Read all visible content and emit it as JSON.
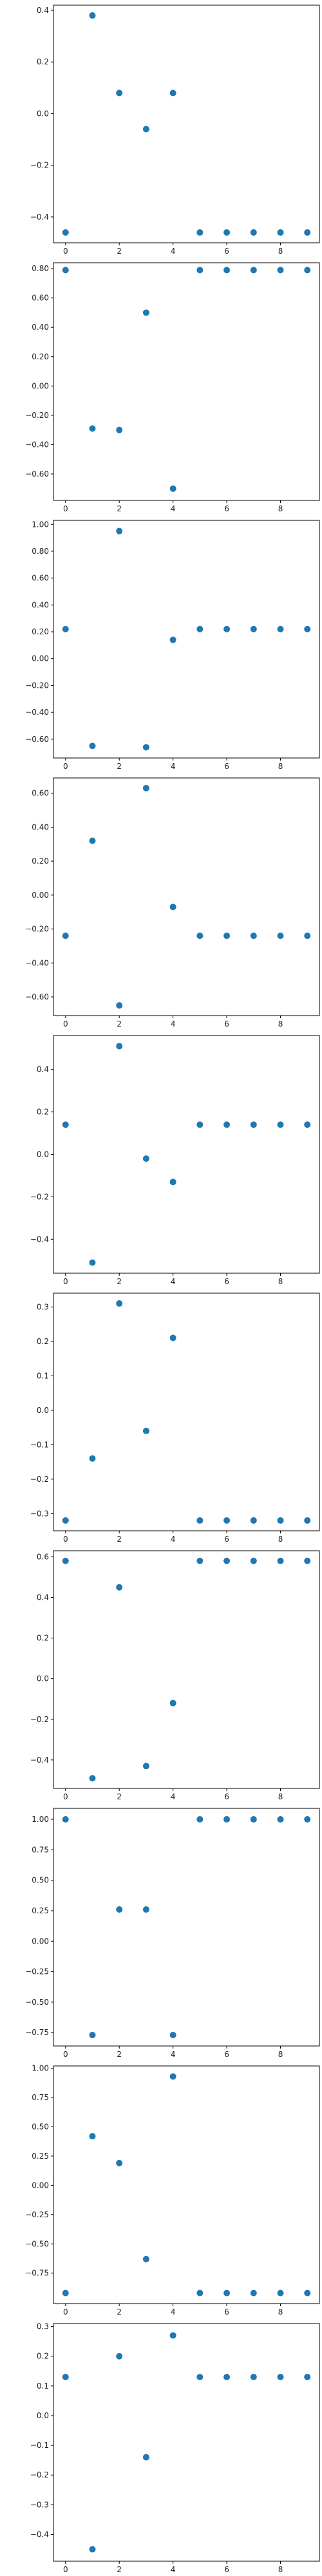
{
  "chart_data": [
    {
      "type": "scatter",
      "x": [
        0,
        1,
        2,
        3,
        4,
        5,
        6,
        7,
        8,
        9
      ],
      "y": [
        -0.46,
        0.38,
        0.08,
        -0.06,
        0.08,
        -0.46,
        -0.46,
        -0.46,
        -0.46,
        -0.46
      ],
      "xlim": [
        -0.45,
        9.45
      ],
      "ylim": [
        -0.5,
        0.42
      ],
      "xticks": [
        0,
        2,
        4,
        6,
        8
      ],
      "yticks": [
        -0.4,
        -0.2,
        0.0,
        0.2,
        0.4
      ],
      "grid": false,
      "color": "#1f77b4"
    },
    {
      "type": "scatter",
      "x": [
        0,
        1,
        2,
        3,
        4,
        5,
        6,
        7,
        8,
        9
      ],
      "y": [
        0.79,
        -0.29,
        -0.3,
        0.5,
        -0.7,
        0.79,
        0.79,
        0.79,
        0.79,
        0.79
      ],
      "xlim": [
        -0.45,
        9.45
      ],
      "ylim": [
        -0.78,
        0.84
      ],
      "xticks": [
        0,
        2,
        4,
        6,
        8
      ],
      "yticks": [
        -0.6,
        -0.4,
        -0.2,
        0.0,
        0.2,
        0.4,
        0.6,
        0.8
      ],
      "grid": false,
      "color": "#1f77b4"
    },
    {
      "type": "scatter",
      "x": [
        0,
        1,
        2,
        3,
        4,
        5,
        6,
        7,
        8,
        9
      ],
      "y": [
        0.22,
        -0.65,
        0.95,
        -0.66,
        0.14,
        0.22,
        0.22,
        0.22,
        0.22,
        0.22
      ],
      "xlim": [
        -0.45,
        9.45
      ],
      "ylim": [
        -0.74,
        1.03
      ],
      "xticks": [
        0,
        2,
        4,
        6,
        8
      ],
      "yticks": [
        -0.6,
        -0.4,
        -0.2,
        0.0,
        0.2,
        0.4,
        0.6,
        0.8,
        1.0
      ],
      "grid": false,
      "color": "#1f77b4"
    },
    {
      "type": "scatter",
      "x": [
        0,
        1,
        2,
        3,
        4,
        5,
        6,
        7,
        8,
        9
      ],
      "y": [
        -0.24,
        0.32,
        -0.65,
        0.63,
        -0.07,
        -0.24,
        -0.24,
        -0.24,
        -0.24,
        -0.24
      ],
      "xlim": [
        -0.45,
        9.45
      ],
      "ylim": [
        -0.71,
        0.69
      ],
      "xticks": [
        0,
        2,
        4,
        6,
        8
      ],
      "yticks": [
        -0.6,
        -0.4,
        -0.2,
        0.0,
        0.2,
        0.4,
        0.6
      ],
      "grid": false,
      "color": "#1f77b4"
    },
    {
      "type": "scatter",
      "x": [
        0,
        1,
        2,
        3,
        4,
        5,
        6,
        7,
        8,
        9
      ],
      "y": [
        0.14,
        -0.51,
        0.51,
        -0.02,
        -0.13,
        0.14,
        0.14,
        0.14,
        0.14,
        0.14
      ],
      "xlim": [
        -0.45,
        9.45
      ],
      "ylim": [
        -0.56,
        0.56
      ],
      "xticks": [
        0,
        2,
        4,
        6,
        8
      ],
      "yticks": [
        -0.4,
        -0.2,
        0.0,
        0.2,
        0.4
      ],
      "grid": false,
      "color": "#1f77b4"
    },
    {
      "type": "scatter",
      "x": [
        0,
        1,
        2,
        3,
        4,
        5,
        6,
        7,
        8,
        9
      ],
      "y": [
        -0.32,
        -0.14,
        0.31,
        -0.06,
        0.21,
        -0.32,
        -0.32,
        -0.32,
        -0.32,
        -0.32
      ],
      "xlim": [
        -0.45,
        9.45
      ],
      "ylim": [
        -0.35,
        0.34
      ],
      "xticks": [
        0,
        2,
        4,
        6,
        8
      ],
      "yticks": [
        -0.3,
        -0.2,
        -0.1,
        0.0,
        0.1,
        0.2,
        0.3
      ],
      "grid": false,
      "color": "#1f77b4"
    },
    {
      "type": "scatter",
      "x": [
        0,
        1,
        2,
        3,
        4,
        5,
        6,
        7,
        8,
        9
      ],
      "y": [
        0.58,
        -0.49,
        0.45,
        -0.43,
        -0.12,
        0.58,
        0.58,
        0.58,
        0.58,
        0.58
      ],
      "xlim": [
        -0.45,
        9.45
      ],
      "ylim": [
        -0.54,
        0.63
      ],
      "xticks": [
        0,
        2,
        4,
        6,
        8
      ],
      "yticks": [
        -0.4,
        -0.2,
        0.0,
        0.2,
        0.4,
        0.6
      ],
      "grid": false,
      "color": "#1f77b4"
    },
    {
      "type": "scatter",
      "x": [
        0,
        1,
        2,
        3,
        4,
        5,
        6,
        7,
        8,
        9
      ],
      "y": [
        1.0,
        -0.77,
        0.26,
        0.26,
        -0.77,
        1.0,
        1.0,
        1.0,
        1.0,
        1.0
      ],
      "xlim": [
        -0.45,
        9.45
      ],
      "ylim": [
        -0.86,
        1.09
      ],
      "xticks": [
        0,
        2,
        4,
        6,
        8
      ],
      "yticks": [
        -0.75,
        -0.5,
        -0.25,
        0.0,
        0.25,
        0.5,
        0.75,
        1.0
      ],
      "grid": false,
      "color": "#1f77b4"
    },
    {
      "type": "scatter",
      "x": [
        0,
        1,
        2,
        3,
        4,
        5,
        6,
        7,
        8,
        9
      ],
      "y": [
        -0.92,
        0.42,
        0.19,
        -0.63,
        0.93,
        -0.92,
        -0.92,
        -0.92,
        -0.92,
        -0.92
      ],
      "xlim": [
        -0.45,
        9.45
      ],
      "ylim": [
        -1.01,
        1.02
      ],
      "xticks": [
        0,
        2,
        4,
        6,
        8
      ],
      "yticks": [
        -0.75,
        -0.5,
        -0.25,
        0.0,
        0.25,
        0.5,
        0.75,
        1.0
      ],
      "grid": false,
      "color": "#1f77b4"
    },
    {
      "type": "scatter",
      "x": [
        0,
        1,
        2,
        3,
        4,
        5,
        6,
        7,
        8,
        9
      ],
      "y": [
        0.13,
        -0.45,
        0.2,
        -0.14,
        0.27,
        0.13,
        0.13,
        0.13,
        0.13,
        0.13
      ],
      "xlim": [
        -0.45,
        9.45
      ],
      "ylim": [
        -0.49,
        0.31
      ],
      "xticks": [
        0,
        2,
        4,
        6,
        8
      ],
      "yticks": [
        -0.4,
        -0.3,
        -0.2,
        -0.1,
        0.0,
        0.1,
        0.2,
        0.3
      ],
      "grid": false,
      "color": "#1f77b4"
    }
  ]
}
